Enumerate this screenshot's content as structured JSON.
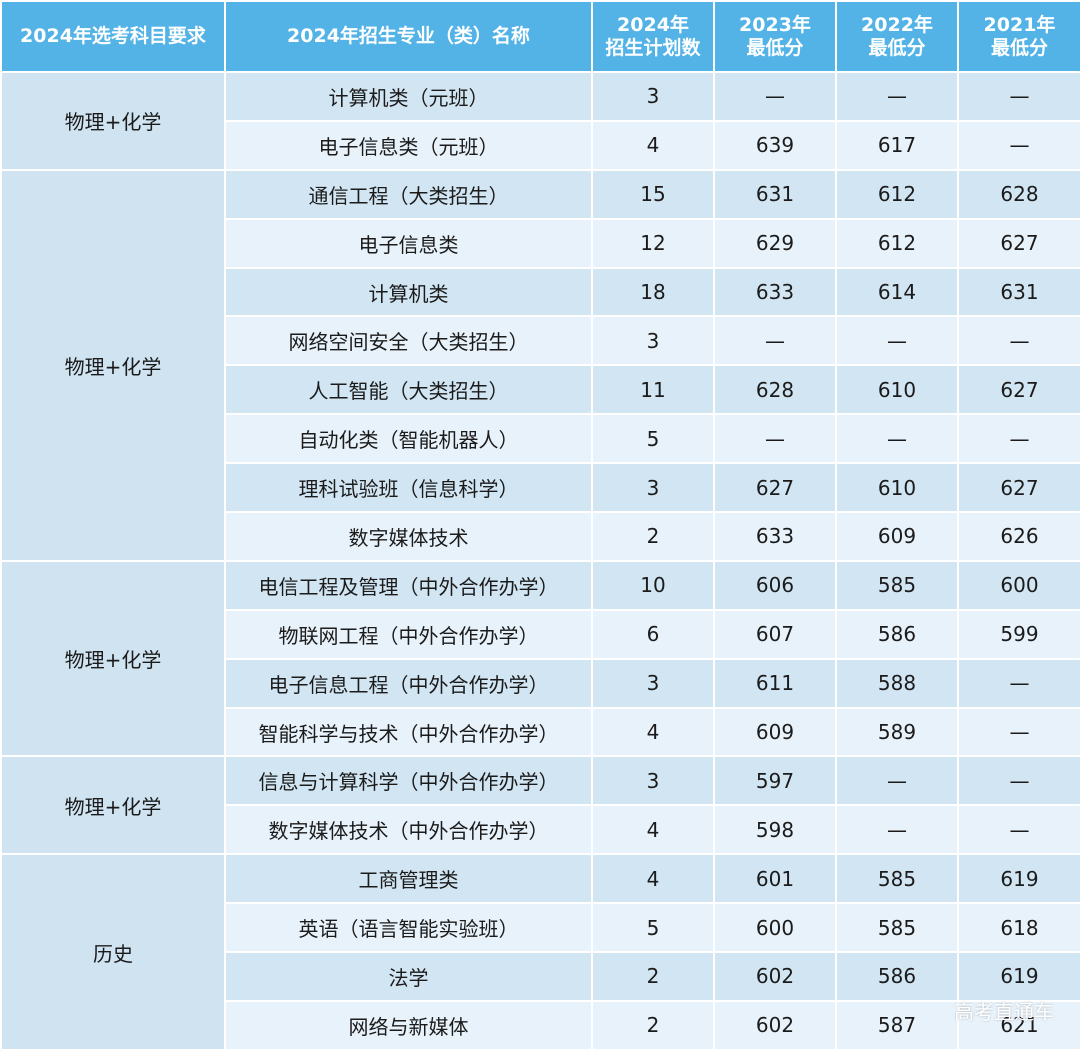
{
  "table": {
    "headers": {
      "subject": "2024年选考科目要求",
      "major": "2024年招生专业（类）名称",
      "plan": [
        "2024年",
        "招生计划数"
      ],
      "y2023": [
        "2023年",
        "最低分"
      ],
      "y2022": [
        "2022年",
        "最低分"
      ],
      "y2021": [
        "2021年",
        "最低分"
      ]
    },
    "groups": [
      {
        "subject": "物理+化学",
        "rows": [
          {
            "major": "计算机类（元班）",
            "plan": "3",
            "y2023": "—",
            "y2022": "—",
            "y2021": "—"
          },
          {
            "major": "电子信息类（元班）",
            "plan": "4",
            "y2023": "639",
            "y2022": "617",
            "y2021": "—"
          }
        ]
      },
      {
        "subject": "物理+化学",
        "rows": [
          {
            "major": "通信工程（大类招生）",
            "plan": "15",
            "y2023": "631",
            "y2022": "612",
            "y2021": "628"
          },
          {
            "major": "电子信息类",
            "plan": "12",
            "y2023": "629",
            "y2022": "612",
            "y2021": "627"
          },
          {
            "major": "计算机类",
            "plan": "18",
            "y2023": "633",
            "y2022": "614",
            "y2021": "631"
          },
          {
            "major": "网络空间安全（大类招生）",
            "plan": "3",
            "y2023": "—",
            "y2022": "—",
            "y2021": "—"
          },
          {
            "major": "人工智能（大类招生）",
            "plan": "11",
            "y2023": "628",
            "y2022": "610",
            "y2021": "627"
          },
          {
            "major": "自动化类（智能机器人）",
            "plan": "5",
            "y2023": "—",
            "y2022": "—",
            "y2021": "—"
          },
          {
            "major": "理科试验班（信息科学）",
            "plan": "3",
            "y2023": "627",
            "y2022": "610",
            "y2021": "627"
          },
          {
            "major": "数字媒体技术",
            "plan": "2",
            "y2023": "633",
            "y2022": "609",
            "y2021": "626"
          }
        ]
      },
      {
        "subject": "物理+化学",
        "rows": [
          {
            "major": "电信工程及管理（中外合作办学）",
            "plan": "10",
            "y2023": "606",
            "y2022": "585",
            "y2021": "600"
          },
          {
            "major": "物联网工程（中外合作办学）",
            "plan": "6",
            "y2023": "607",
            "y2022": "586",
            "y2021": "599"
          },
          {
            "major": "电子信息工程（中外合作办学）",
            "plan": "3",
            "y2023": "611",
            "y2022": "588",
            "y2021": "—"
          },
          {
            "major": "智能科学与技术（中外合作办学）",
            "plan": "4",
            "y2023": "609",
            "y2022": "589",
            "y2021": "—"
          }
        ]
      },
      {
        "subject": "物理+化学",
        "rows": [
          {
            "major": "信息与计算科学（中外合作办学）",
            "plan": "3",
            "y2023": "597",
            "y2022": "—",
            "y2021": "—"
          },
          {
            "major": "数字媒体技术（中外合作办学）",
            "plan": "4",
            "y2023": "598",
            "y2022": "—",
            "y2021": "—"
          }
        ]
      },
      {
        "subject": "历史",
        "rows": [
          {
            "major": "工商管理类",
            "plan": "4",
            "y2023": "601",
            "y2022": "585",
            "y2021": "619"
          },
          {
            "major": "英语（语言智能实验班）",
            "plan": "5",
            "y2023": "600",
            "y2022": "585",
            "y2021": "618"
          },
          {
            "major": "法学",
            "plan": "2",
            "y2023": "602",
            "y2022": "586",
            "y2021": "619"
          },
          {
            "major": "网络与新媒体",
            "plan": "2",
            "y2023": "602",
            "y2022": "587",
            "y2021": "621"
          }
        ]
      }
    ]
  },
  "watermark": "高考直通车",
  "colors": {
    "header_bg": "#53b3e6",
    "header_text": "#ffffff",
    "group_bg": "#cfe3f1",
    "row_dark": "#d2e5f3",
    "row_light": "#e8f2fa"
  }
}
